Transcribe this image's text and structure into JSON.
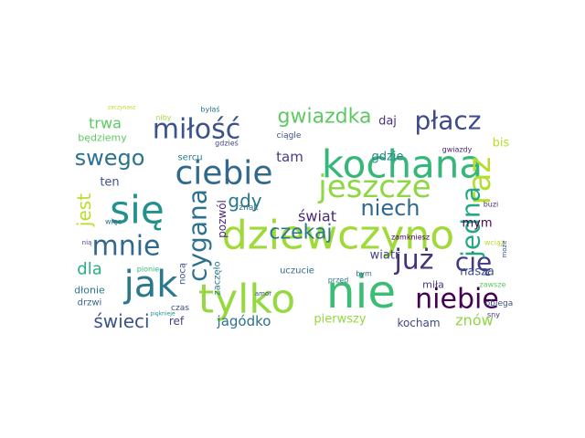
{
  "chart_data": {
    "type": "wordcloud",
    "words": [
      "nie",
      "dziewczyno",
      "tylko",
      "kochana",
      "się",
      "ciebie",
      "jak",
      "jeszcze",
      "mnie",
      "miłość",
      "cygana",
      "już",
      "cię",
      "raz",
      "jedna",
      "niebie",
      "płacz",
      "gwiazdka",
      "swego",
      "czekaj",
      "niech",
      "jest",
      "świeci",
      "dla",
      "trwa",
      "świat",
      "gdy",
      "tam",
      "jagódko",
      "znów",
      "mym",
      "bis",
      "daj",
      "gdzie",
      "wiatr",
      "nasza",
      "pierwszy",
      "kocham",
      "ten",
      "będziemy",
      "uczucie",
      "pozwól",
      "zaczęło",
      "nocą",
      "ref",
      "dłonie",
      "drzwi",
      "czas",
      "obiega",
      "sny",
      "miła",
      "zawsze",
      "znak",
      "gwiazdy",
      "ciągle",
      "sercu",
      "gdzieś",
      "byłaś",
      "niby",
      "buzi",
      "zamkniesz",
      "wciąż",
      "może",
      "przed",
      "bym",
      "amor",
      "pionie",
      "więc",
      "nią",
      "zaczynasz",
      "pięknieje"
    ],
    "colors": [
      "#3dbc74",
      "#a0da39",
      "#95d840",
      "#35b779",
      "#21918c",
      "#31688e",
      "#2a788e",
      "#8fd744",
      "#31688e",
      "#3b528b",
      "#2c728e",
      "#46337e",
      "#443983",
      "#b5de2b",
      "#22a884",
      "#440154",
      "#3e4a89",
      "#5ec962",
      "#2c728e",
      "#2a788e",
      "#31688e",
      "#b8de29",
      "#3b528b",
      "#29af7f",
      "#5ec962",
      "#482878",
      "#2a788e",
      "#433e85",
      "#2c728e",
      "#8fd744",
      "#440154",
      "#b8de29",
      "#46327e",
      "#26828e",
      "#414487",
      "#3b528b",
      "#95d840",
      "#3e4a89",
      "#3b528b",
      "#5ec962",
      "#31688e",
      "#482878",
      "#2a788e",
      "#3b528b",
      "#414487",
      "#2a788e",
      "#31688e",
      "#3e4a89",
      "#3b528b",
      "#46337e",
      "#443983",
      "#5ec962",
      "#2c728e",
      "#482878",
      "#3b528b",
      "#26828e",
      "#414487",
      "#2a788e",
      "#a0da39",
      "#482878",
      "#440154",
      "#b5de2b",
      "#3b528b",
      "#2a788e",
      "#31688e",
      "#3b528b",
      "#35b779",
      "#31688e",
      "#3e4a89",
      "#b8de29",
      "#21918c"
    ]
  }
}
